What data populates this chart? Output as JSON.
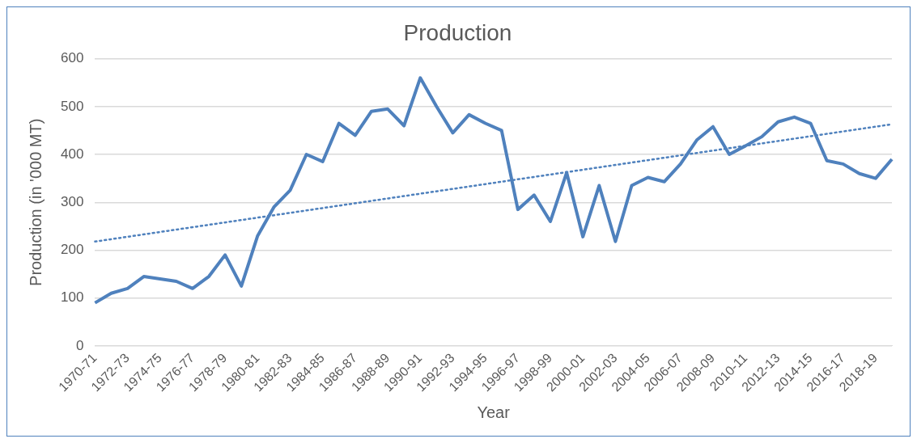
{
  "chart_data": {
    "type": "line",
    "title": "Production",
    "xlabel": "Year",
    "ylabel": "Production (in '000 MT)",
    "categories": [
      "1970-71",
      null,
      "1972-73",
      null,
      "1974-75",
      null,
      "1976-77",
      null,
      "1978-79",
      null,
      "1980-81",
      null,
      "1982-83",
      null,
      "1984-85",
      null,
      "1986-87",
      null,
      "1988-89",
      null,
      "1990-91",
      null,
      "1992-93",
      null,
      "1994-95",
      null,
      "1996-97",
      null,
      "1998-99",
      null,
      "2000-01",
      null,
      "2002-03",
      null,
      "2004-05",
      null,
      "2006-07",
      null,
      "2008-09",
      null,
      "2010-11",
      null,
      "2012-13",
      null,
      "2014-15",
      null,
      "2016-17",
      null,
      "2018-19",
      null
    ],
    "series": [
      {
        "color": "#4f81bd",
        "line_style": "solid",
        "values": [
          90,
          110,
          120,
          145,
          140,
          135,
          120,
          145,
          190,
          125,
          230,
          290,
          325,
          400,
          385,
          465,
          440,
          490,
          495,
          460,
          560,
          500,
          445,
          483,
          465,
          450,
          285,
          315,
          260,
          362,
          228,
          335,
          218,
          335,
          352,
          343,
          380,
          430,
          458,
          400,
          418,
          437,
          468,
          478,
          465,
          387,
          380,
          360,
          350,
          390
        ]
      },
      {
        "color": "#4f81bd",
        "line_style": "dotted",
        "values": [
          218,
          null,
          null,
          null,
          null,
          null,
          null,
          null,
          null,
          null,
          null,
          null,
          null,
          null,
          null,
          null,
          null,
          null,
          null,
          null,
          null,
          null,
          null,
          null,
          null,
          null,
          null,
          null,
          null,
          null,
          null,
          null,
          null,
          null,
          null,
          null,
          null,
          null,
          null,
          null,
          null,
          null,
          null,
          null,
          null,
          null,
          null,
          null,
          null,
          463
        ]
      }
    ],
    "ylim": [
      0,
      600
    ],
    "yticks": [
      0,
      100,
      200,
      300,
      400,
      500,
      600
    ],
    "grid": "y",
    "legend": false,
    "marker": "none"
  }
}
